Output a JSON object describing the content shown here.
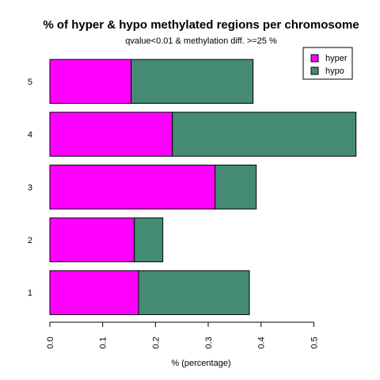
{
  "chart_data": {
    "type": "bar",
    "orientation": "horizontal",
    "stacked": true,
    "title": "% of hyper & hypo methylated regions per chromosome",
    "subtitle": "qvalue<0.01 & methylation diff. >=25 %",
    "xlabel": "% (percentage)",
    "ylabel": "",
    "categories": [
      "1",
      "2",
      "3",
      "4",
      "5"
    ],
    "series": [
      {
        "name": "hyper",
        "color": "#ff00ff",
        "values": [
          0.168,
          0.16,
          0.313,
          0.232,
          0.154
        ]
      },
      {
        "name": "hypo",
        "color": "#458b74",
        "values": [
          0.21,
          0.054,
          0.078,
          0.348,
          0.231
        ]
      }
    ],
    "xlim": [
      0,
      0.58
    ],
    "xticks": [
      "0.0",
      "0.1",
      "0.2",
      "0.3",
      "0.4",
      "0.5"
    ],
    "legend_position": "top-right",
    "grid": false
  }
}
